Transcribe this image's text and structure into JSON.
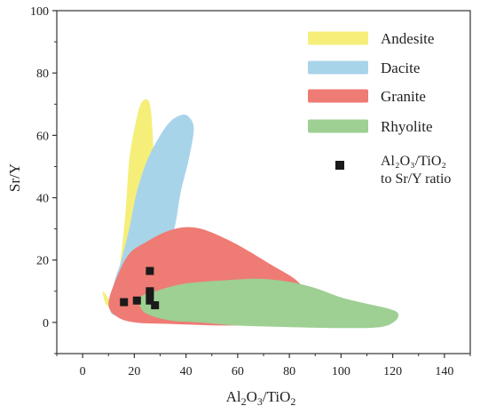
{
  "chart_data": {
    "type": "scatter",
    "title": "",
    "xlabel": "Al2O3/TiO2",
    "ylabel": "Sr/Y",
    "xlim": [
      -10,
      150
    ],
    "ylim": [
      -10,
      100
    ],
    "xticks": [
      "0",
      "20",
      "40",
      "60",
      "80",
      "100",
      "120",
      "140"
    ],
    "yticks": [
      "0",
      "20",
      "40",
      "60",
      "80",
      "100"
    ],
    "grid": false,
    "legend_position": "top-right",
    "fields": [
      {
        "name": "Andesite",
        "color": "#f5ef7a",
        "polygon": [
          [
            8,
            10
          ],
          [
            9,
            6
          ],
          [
            12,
            5
          ],
          [
            14,
            15
          ],
          [
            16,
            30
          ],
          [
            17,
            40
          ],
          [
            18,
            52
          ],
          [
            20,
            62
          ],
          [
            22,
            69
          ],
          [
            24,
            71.5
          ],
          [
            26,
            70
          ],
          [
            27,
            62
          ],
          [
            27.5,
            50
          ],
          [
            27,
            38
          ],
          [
            25,
            32
          ],
          [
            21,
            22
          ],
          [
            17,
            13
          ],
          [
            13,
            5
          ]
        ]
      },
      {
        "name": "Dacite",
        "color": "#a8d4ea",
        "polygon": [
          [
            11,
            3
          ],
          [
            12,
            12
          ],
          [
            15,
            20
          ],
          [
            18,
            30
          ],
          [
            21,
            42
          ],
          [
            25,
            52
          ],
          [
            30,
            60
          ],
          [
            34,
            64.5
          ],
          [
            38,
            66.5
          ],
          [
            41,
            66
          ],
          [
            43,
            62
          ],
          [
            41,
            52
          ],
          [
            38,
            42
          ],
          [
            36,
            32
          ],
          [
            33,
            22
          ],
          [
            30,
            15
          ],
          [
            25,
            8
          ],
          [
            19,
            3
          ]
        ]
      },
      {
        "name": "Granite",
        "color": "#ee7b74",
        "polygon": [
          [
            10,
            6
          ],
          [
            13,
            14
          ],
          [
            18,
            22
          ],
          [
            25,
            26
          ],
          [
            32,
            29
          ],
          [
            39,
            30.5
          ],
          [
            46,
            30
          ],
          [
            55,
            27
          ],
          [
            64,
            23
          ],
          [
            74,
            18
          ],
          [
            82,
            14
          ],
          [
            86,
            10
          ],
          [
            86,
            5
          ],
          [
            83,
            2
          ],
          [
            70,
            -0.5
          ],
          [
            55,
            -1
          ],
          [
            35,
            -0.5
          ],
          [
            20,
            0
          ],
          [
            13,
            2
          ]
        ]
      },
      {
        "name": "Rhyolite",
        "color": "#9ecf93",
        "polygon": [
          [
            22,
            8
          ],
          [
            30,
            10.5
          ],
          [
            40,
            12.5
          ],
          [
            55,
            13.5
          ],
          [
            68,
            14
          ],
          [
            80,
            13
          ],
          [
            90,
            11
          ],
          [
            100,
            8
          ],
          [
            110,
            6
          ],
          [
            118,
            4.5
          ],
          [
            122,
            3
          ],
          [
            121,
            0.5
          ],
          [
            115,
            -1.5
          ],
          [
            100,
            -1.8
          ],
          [
            80,
            -1.5
          ],
          [
            60,
            -1
          ],
          [
            45,
            0
          ],
          [
            35,
            0.5
          ],
          [
            27,
            2
          ],
          [
            23,
            4
          ]
        ]
      }
    ],
    "series": [
      {
        "name": "Al2O3/TiO2 to Sr/Y ratio",
        "legend_lines": [
          "Al₂O₃/TiO₂",
          "to Sr/Y ratio"
        ],
        "color": "#1a1a1a",
        "marker": "square",
        "points": [
          [
            16,
            6.5
          ],
          [
            21,
            7
          ],
          [
            26,
            16.5
          ],
          [
            26,
            10
          ],
          [
            26,
            9
          ],
          [
            26,
            7
          ],
          [
            28,
            5.5
          ]
        ]
      }
    ]
  }
}
